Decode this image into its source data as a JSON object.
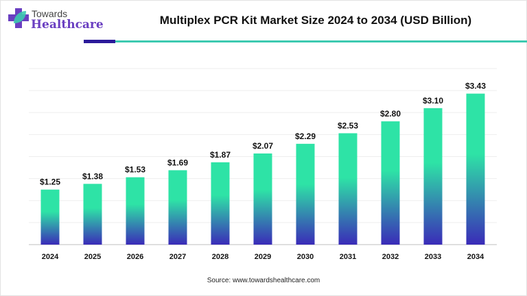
{
  "logo": {
    "top": "Towards",
    "main": "Healthcare"
  },
  "source": "Source: www.towardshealthcare.com",
  "colors": {
    "bar_top": "#2ee3a6",
    "bar_bottom": "#3a2bb8",
    "accent_dark": "#2b1a9a",
    "accent_teal": "#3cc9b0",
    "logo_purple": "#6a3fc1"
  },
  "chart_data": {
    "type": "bar",
    "title": "Multiplex PCR Kit Market Size 2024 to 2034 (USD Billion)",
    "categories": [
      "2024",
      "2025",
      "2026",
      "2027",
      "2028",
      "2029",
      "2030",
      "2031",
      "2032",
      "2033",
      "2034"
    ],
    "values": [
      1.25,
      1.38,
      1.53,
      1.69,
      1.87,
      2.07,
      2.29,
      2.53,
      2.8,
      3.1,
      3.43
    ],
    "data_labels": [
      "$1.25",
      "$1.38",
      "$1.53",
      "$1.69",
      "$1.87",
      "$2.07",
      "$2.29",
      "$2.53",
      "$2.80",
      "$3.10",
      "$3.43"
    ],
    "xlabel": "",
    "ylabel": "",
    "ylim": [
      0,
      4
    ],
    "grid": true,
    "gridline_step": 0.5
  }
}
